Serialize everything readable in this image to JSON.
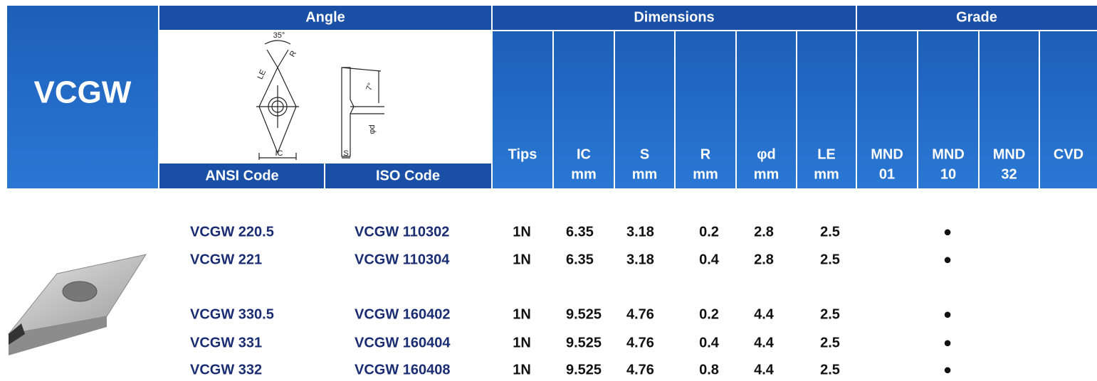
{
  "header": {
    "title": "VCGW",
    "groups": [
      "Angle",
      "Dimensions",
      "Grade"
    ],
    "codes": [
      "ANSI Code",
      "ISO Code"
    ],
    "columns": [
      [
        "Tips"
      ],
      [
        "IC",
        "mm"
      ],
      [
        "S",
        "mm"
      ],
      [
        "R",
        "mm"
      ],
      [
        "φd",
        "mm"
      ],
      [
        "LE",
        "mm"
      ],
      [
        "MND",
        "01"
      ],
      [
        "MND",
        "10"
      ],
      [
        "MND",
        "32"
      ],
      [
        "CVD"
      ]
    ]
  },
  "drawing_labels": [
    "35°",
    "R",
    "LE",
    "IC",
    "7°",
    "φd",
    "S"
  ],
  "rows": [
    [
      "VCGW 220.5",
      "VCGW 110302",
      "1N",
      "6.35",
      "3.18",
      "0.2",
      "2.8",
      "2.5",
      "●"
    ],
    [
      "VCGW 221",
      "VCGW 110304",
      "1N",
      "6.35",
      "3.18",
      "0.4",
      "2.8",
      "2.5",
      "●"
    ],
    [
      "VCGW 330.5",
      "VCGW 160402",
      "1N",
      "9.525",
      "4.76",
      "0.2",
      "4.4",
      "2.5",
      "●"
    ],
    [
      "VCGW 331",
      "VCGW 160404",
      "1N",
      "9.525",
      "4.76",
      "0.4",
      "4.4",
      "2.5",
      "●"
    ],
    [
      "VCGW 332",
      "VCGW 160408",
      "1N",
      "9.525",
      "4.76",
      "0.8",
      "4.4",
      "2.5",
      "●"
    ]
  ]
}
